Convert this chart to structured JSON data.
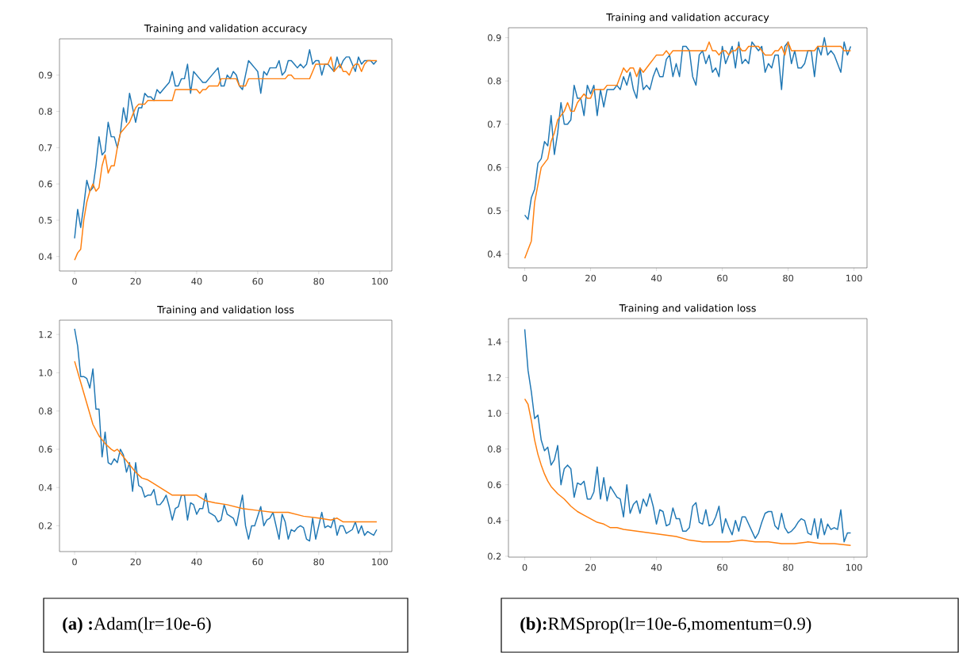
{
  "chart_data": [
    {
      "type": "line",
      "title": "Training and validation accuracy",
      "xlim": [
        -4.95,
        103.95
      ],
      "ylim": [
        0.36,
        1.0
      ],
      "xticks": [
        0,
        20,
        40,
        60,
        80,
        100
      ],
      "yticks": [
        0.4,
        0.5,
        0.6,
        0.7,
        0.8,
        0.9
      ],
      "x": [
        0,
        1,
        2,
        3,
        4,
        5,
        6,
        7,
        8,
        9,
        10,
        11,
        12,
        13,
        14,
        15,
        16,
        17,
        18,
        19,
        20,
        21,
        22,
        23,
        24,
        25,
        26,
        27,
        28,
        29,
        30,
        31,
        32,
        33,
        34,
        35,
        36,
        37,
        38,
        39,
        40,
        41,
        42,
        43,
        44,
        45,
        46,
        47,
        48,
        49,
        50,
        51,
        52,
        53,
        54,
        55,
        56,
        57,
        58,
        59,
        60,
        61,
        62,
        63,
        64,
        65,
        66,
        67,
        68,
        69,
        70,
        71,
        72,
        73,
        74,
        75,
        76,
        77,
        78,
        79,
        80,
        81,
        82,
        83,
        84,
        85,
        86,
        87,
        88,
        89,
        90,
        91,
        92,
        93,
        94,
        95,
        96,
        97,
        98,
        99
      ],
      "series": [
        {
          "color": "#1f77b4",
          "values": [
            0.45,
            0.53,
            0.48,
            0.54,
            0.61,
            0.58,
            0.59,
            0.65,
            0.73,
            0.68,
            0.69,
            0.77,
            0.73,
            0.73,
            0.7,
            0.74,
            0.81,
            0.77,
            0.85,
            0.81,
            0.77,
            0.81,
            0.81,
            0.85,
            0.84,
            0.84,
            0.83,
            0.86,
            0.85,
            0.86,
            0.87,
            0.88,
            0.91,
            0.87,
            0.87,
            0.89,
            0.89,
            0.93,
            0.85,
            0.91,
            0.9,
            0.89,
            0.88,
            0.88,
            0.89,
            0.9,
            0.91,
            0.92,
            0.87,
            0.87,
            0.9,
            0.89,
            0.91,
            0.9,
            0.87,
            0.86,
            0.9,
            0.94,
            0.93,
            0.92,
            0.91,
            0.85,
            0.91,
            0.9,
            0.92,
            0.92,
            0.92,
            0.94,
            0.9,
            0.91,
            0.94,
            0.94,
            0.93,
            0.92,
            0.93,
            0.92,
            0.93,
            0.97,
            0.93,
            0.94,
            0.94,
            0.9,
            0.93,
            0.93,
            0.92,
            0.91,
            0.95,
            0.92,
            0.94,
            0.95,
            0.95,
            0.93,
            0.91,
            0.95,
            0.93,
            0.94,
            0.94,
            0.94,
            0.93,
            0.94
          ]
        },
        {
          "color": "#ff7f0e",
          "values": [
            0.39,
            0.41,
            0.42,
            0.5,
            0.55,
            0.58,
            0.6,
            0.58,
            0.59,
            0.65,
            0.68,
            0.63,
            0.65,
            0.65,
            0.7,
            0.74,
            0.75,
            0.76,
            0.77,
            0.79,
            0.81,
            0.82,
            0.82,
            0.82,
            0.83,
            0.83,
            0.83,
            0.83,
            0.83,
            0.83,
            0.83,
            0.83,
            0.83,
            0.86,
            0.86,
            0.86,
            0.86,
            0.86,
            0.86,
            0.86,
            0.86,
            0.85,
            0.86,
            0.86,
            0.87,
            0.87,
            0.87,
            0.87,
            0.89,
            0.89,
            0.89,
            0.89,
            0.89,
            0.89,
            0.87,
            0.87,
            0.87,
            0.89,
            0.89,
            0.89,
            0.89,
            0.89,
            0.89,
            0.89,
            0.89,
            0.89,
            0.89,
            0.89,
            0.89,
            0.89,
            0.9,
            0.9,
            0.89,
            0.89,
            0.89,
            0.89,
            0.89,
            0.89,
            0.91,
            0.93,
            0.93,
            0.93,
            0.93,
            0.93,
            0.95,
            0.91,
            0.92,
            0.93,
            0.91,
            0.91,
            0.9,
            0.92,
            0.93,
            0.93,
            0.91,
            0.93,
            0.94,
            0.94,
            0.94,
            0.94
          ]
        }
      ]
    },
    {
      "type": "line",
      "title": "Training and validation accuracy",
      "xlim": [
        -4.95,
        103.95
      ],
      "ylim": [
        0.368,
        0.923
      ],
      "xticks": [
        0,
        20,
        40,
        60,
        80,
        100
      ],
      "yticks": [
        0.4,
        0.5,
        0.6,
        0.7,
        0.8,
        0.9
      ],
      "x": [
        0,
        1,
        2,
        3,
        4,
        5,
        6,
        7,
        8,
        9,
        10,
        11,
        12,
        13,
        14,
        15,
        16,
        17,
        18,
        19,
        20,
        21,
        22,
        23,
        24,
        25,
        26,
        27,
        28,
        29,
        30,
        31,
        32,
        33,
        34,
        35,
        36,
        37,
        38,
        39,
        40,
        41,
        42,
        43,
        44,
        45,
        46,
        47,
        48,
        49,
        50,
        51,
        52,
        53,
        54,
        55,
        56,
        57,
        58,
        59,
        60,
        61,
        62,
        63,
        64,
        65,
        66,
        67,
        68,
        69,
        70,
        71,
        72,
        73,
        74,
        75,
        76,
        77,
        78,
        79,
        80,
        81,
        82,
        83,
        84,
        85,
        86,
        87,
        88,
        89,
        90,
        91,
        92,
        93,
        94,
        95,
        96,
        97,
        98,
        99
      ],
      "series": [
        {
          "color": "#1f77b4",
          "values": [
            0.49,
            0.48,
            0.53,
            0.55,
            0.61,
            0.62,
            0.66,
            0.65,
            0.72,
            0.63,
            0.68,
            0.75,
            0.7,
            0.7,
            0.71,
            0.79,
            0.76,
            0.76,
            0.72,
            0.79,
            0.77,
            0.79,
            0.72,
            0.78,
            0.74,
            0.78,
            0.78,
            0.78,
            0.79,
            0.78,
            0.81,
            0.79,
            0.82,
            0.78,
            0.76,
            0.83,
            0.78,
            0.79,
            0.78,
            0.81,
            0.83,
            0.81,
            0.81,
            0.85,
            0.86,
            0.81,
            0.84,
            0.81,
            0.88,
            0.88,
            0.87,
            0.81,
            0.79,
            0.86,
            0.87,
            0.84,
            0.86,
            0.82,
            0.83,
            0.81,
            0.88,
            0.84,
            0.86,
            0.88,
            0.83,
            0.89,
            0.84,
            0.85,
            0.84,
            0.89,
            0.88,
            0.87,
            0.88,
            0.82,
            0.84,
            0.83,
            0.86,
            0.86,
            0.78,
            0.88,
            0.89,
            0.84,
            0.87,
            0.83,
            0.83,
            0.84,
            0.87,
            0.87,
            0.81,
            0.88,
            0.86,
            0.9,
            0.86,
            0.87,
            0.86,
            0.84,
            0.82,
            0.89,
            0.86,
            0.88
          ]
        },
        {
          "color": "#ff7f0e",
          "values": [
            0.39,
            0.41,
            0.43,
            0.52,
            0.56,
            0.6,
            0.61,
            0.62,
            0.66,
            0.68,
            0.71,
            0.72,
            0.73,
            0.75,
            0.73,
            0.73,
            0.75,
            0.76,
            0.77,
            0.76,
            0.76,
            0.78,
            0.78,
            0.78,
            0.78,
            0.79,
            0.79,
            0.79,
            0.79,
            0.81,
            0.83,
            0.82,
            0.83,
            0.83,
            0.81,
            0.83,
            0.82,
            0.83,
            0.84,
            0.85,
            0.86,
            0.86,
            0.86,
            0.87,
            0.86,
            0.87,
            0.87,
            0.87,
            0.87,
            0.87,
            0.87,
            0.87,
            0.87,
            0.87,
            0.87,
            0.87,
            0.89,
            0.87,
            0.87,
            0.86,
            0.87,
            0.87,
            0.86,
            0.87,
            0.87,
            0.88,
            0.87,
            0.87,
            0.88,
            0.88,
            0.88,
            0.88,
            0.87,
            0.86,
            0.86,
            0.86,
            0.87,
            0.87,
            0.88,
            0.86,
            0.89,
            0.87,
            0.87,
            0.87,
            0.87,
            0.87,
            0.87,
            0.87,
            0.87,
            0.88,
            0.88,
            0.88,
            0.88,
            0.88,
            0.88,
            0.88,
            0.88,
            0.87,
            0.87,
            0.87
          ]
        }
      ]
    },
    {
      "type": "line",
      "title": "Training and validation loss",
      "xlim": [
        -4.95,
        103.95
      ],
      "ylim": [
        0.065,
        1.275
      ],
      "xticks": [
        0,
        20,
        40,
        60,
        80,
        100
      ],
      "yticks": [
        0.2,
        0.4,
        0.6,
        0.8,
        {
          "value": 1.0,
          "label": "1.0"
        },
        1.2
      ],
      "annotations": [
        "**(a) :**Adam(lr=10e-6)"
      ],
      "x": [
        0,
        1,
        2,
        3,
        4,
        5,
        6,
        7,
        8,
        9,
        10,
        11,
        12,
        13,
        14,
        15,
        16,
        17,
        18,
        19,
        20,
        21,
        22,
        23,
        24,
        25,
        26,
        27,
        28,
        29,
        30,
        31,
        32,
        33,
        34,
        35,
        36,
        37,
        38,
        39,
        40,
        41,
        42,
        43,
        44,
        45,
        46,
        47,
        48,
        49,
        50,
        51,
        52,
        53,
        54,
        55,
        56,
        57,
        58,
        59,
        60,
        61,
        62,
        63,
        64,
        65,
        66,
        67,
        68,
        69,
        70,
        71,
        72,
        73,
        74,
        75,
        76,
        77,
        78,
        79,
        80,
        81,
        82,
        83,
        84,
        85,
        86,
        87,
        88,
        89,
        90,
        91,
        92,
        93,
        94,
        95,
        96,
        97,
        98,
        99
      ],
      "series": [
        {
          "color": "#1f77b4",
          "values": [
            1.23,
            1.14,
            0.98,
            0.98,
            0.97,
            0.92,
            1.02,
            0.81,
            0.81,
            0.56,
            0.69,
            0.53,
            0.52,
            0.55,
            0.53,
            0.6,
            0.57,
            0.48,
            0.53,
            0.38,
            0.53,
            0.41,
            0.4,
            0.35,
            0.36,
            0.36,
            0.39,
            0.31,
            0.31,
            0.33,
            0.36,
            0.3,
            0.23,
            0.29,
            0.3,
            0.36,
            0.36,
            0.23,
            0.32,
            0.31,
            0.26,
            0.29,
            0.29,
            0.37,
            0.27,
            0.26,
            0.25,
            0.22,
            0.23,
            0.31,
            0.26,
            0.25,
            0.24,
            0.2,
            0.28,
            0.36,
            0.2,
            0.13,
            0.2,
            0.2,
            0.25,
            0.3,
            0.2,
            0.23,
            0.24,
            0.27,
            0.2,
            0.13,
            0.26,
            0.22,
            0.13,
            0.18,
            0.17,
            0.19,
            0.2,
            0.19,
            0.13,
            0.12,
            0.24,
            0.13,
            0.2,
            0.27,
            0.19,
            0.2,
            0.19,
            0.24,
            0.15,
            0.2,
            0.2,
            0.16,
            0.17,
            0.18,
            0.22,
            0.16,
            0.2,
            0.15,
            0.17,
            0.16,
            0.15,
            0.18
          ]
        },
        {
          "color": "#ff7f0e",
          "x": [
            0,
            2,
            4,
            6,
            8,
            10,
            12,
            13,
            14,
            16,
            18,
            20,
            22,
            24,
            26,
            28,
            30,
            32,
            35,
            40,
            43,
            46,
            50,
            55,
            60,
            65,
            70,
            75,
            80,
            84,
            86,
            88,
            92,
            96,
            99
          ],
          "values": [
            1.06,
            0.95,
            0.84,
            0.73,
            0.67,
            0.63,
            0.6,
            0.59,
            0.6,
            0.56,
            0.52,
            0.48,
            0.45,
            0.44,
            0.42,
            0.4,
            0.38,
            0.36,
            0.36,
            0.36,
            0.33,
            0.32,
            0.31,
            0.29,
            0.28,
            0.27,
            0.27,
            0.25,
            0.24,
            0.23,
            0.24,
            0.22,
            0.22,
            0.22,
            0.22
          ]
        }
      ]
    },
    {
      "type": "line",
      "title": "Training and validation loss",
      "xlim": [
        -4.95,
        103.95
      ],
      "ylim": [
        0.195,
        1.53
      ],
      "xticks": [
        0,
        20,
        40,
        60,
        80,
        100
      ],
      "yticks": [
        0.2,
        0.4,
        0.6,
        0.8,
        {
          "value": 1.0,
          "label": "1.0"
        },
        1.2,
        1.4
      ],
      "annotations": [
        "**(b):**RMSprop(lr=10e-6,momentum=0.9)"
      ],
      "x": [
        0,
        1,
        2,
        3,
        4,
        5,
        6,
        7,
        8,
        9,
        10,
        11,
        12,
        13,
        14,
        15,
        16,
        17,
        18,
        19,
        20,
        21,
        22,
        23,
        24,
        25,
        26,
        27,
        28,
        29,
        30,
        31,
        32,
        33,
        34,
        35,
        36,
        37,
        38,
        39,
        40,
        41,
        42,
        43,
        44,
        45,
        46,
        47,
        48,
        49,
        50,
        51,
        52,
        53,
        54,
        55,
        56,
        57,
        58,
        59,
        60,
        61,
        62,
        63,
        64,
        65,
        66,
        67,
        68,
        69,
        70,
        71,
        72,
        73,
        74,
        75,
        76,
        77,
        78,
        79,
        80,
        81,
        82,
        83,
        84,
        85,
        86,
        87,
        88,
        89,
        90,
        91,
        92,
        93,
        94,
        95,
        96,
        97,
        98,
        99
      ],
      "series": [
        {
          "color": "#1f77b4",
          "values": [
            1.47,
            1.24,
            1.12,
            0.97,
            0.99,
            0.85,
            0.79,
            0.81,
            0.71,
            0.74,
            0.82,
            0.6,
            0.69,
            0.71,
            0.69,
            0.53,
            0.61,
            0.6,
            0.62,
            0.52,
            0.52,
            0.56,
            0.7,
            0.52,
            0.64,
            0.51,
            0.59,
            0.56,
            0.53,
            0.52,
            0.42,
            0.6,
            0.44,
            0.49,
            0.51,
            0.44,
            0.52,
            0.48,
            0.55,
            0.48,
            0.38,
            0.46,
            0.45,
            0.37,
            0.38,
            0.47,
            0.41,
            0.41,
            0.34,
            0.34,
            0.36,
            0.48,
            0.5,
            0.39,
            0.38,
            0.46,
            0.37,
            0.38,
            0.42,
            0.48,
            0.33,
            0.41,
            0.36,
            0.32,
            0.4,
            0.34,
            0.42,
            0.42,
            0.38,
            0.34,
            0.3,
            0.33,
            0.39,
            0.44,
            0.45,
            0.45,
            0.37,
            0.35,
            0.44,
            0.36,
            0.33,
            0.34,
            0.36,
            0.39,
            0.41,
            0.4,
            0.33,
            0.32,
            0.41,
            0.3,
            0.41,
            0.32,
            0.38,
            0.35,
            0.36,
            0.35,
            0.46,
            0.28,
            0.33,
            0.33
          ]
        },
        {
          "color": "#ff7f0e",
          "x": [
            0,
            1,
            2,
            3,
            4,
            5,
            6,
            7,
            8,
            10,
            12,
            14,
            16,
            18,
            20,
            22,
            24,
            26,
            28,
            30,
            34,
            38,
            42,
            46,
            50,
            54,
            58,
            62,
            66,
            70,
            74,
            78,
            82,
            86,
            90,
            94,
            99
          ],
          "values": [
            1.08,
            1.05,
            0.96,
            0.85,
            0.77,
            0.71,
            0.66,
            0.62,
            0.59,
            0.55,
            0.52,
            0.48,
            0.45,
            0.43,
            0.41,
            0.39,
            0.38,
            0.36,
            0.36,
            0.35,
            0.34,
            0.33,
            0.32,
            0.31,
            0.29,
            0.28,
            0.28,
            0.28,
            0.29,
            0.28,
            0.28,
            0.27,
            0.27,
            0.28,
            0.27,
            0.27,
            0.26
          ]
        }
      ]
    }
  ]
}
